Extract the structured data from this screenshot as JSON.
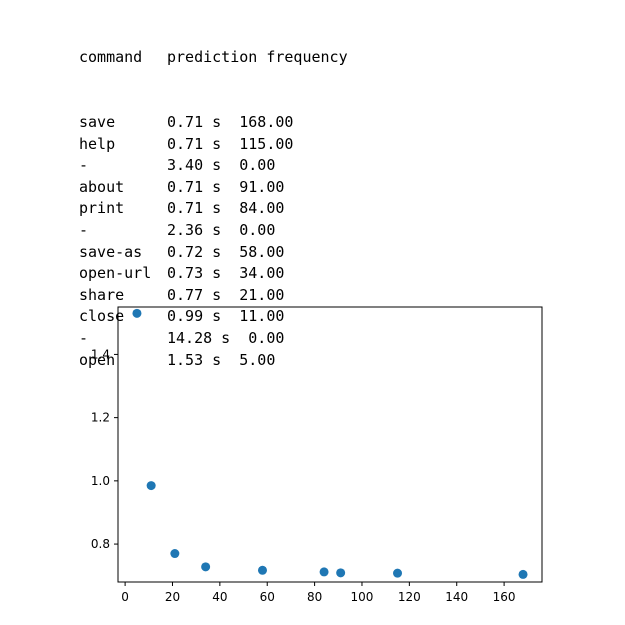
{
  "table": {
    "header": [
      "command",
      "prediction",
      "frequency"
    ],
    "rows": [
      {
        "command": "save",
        "prediction": "0.71 s",
        "frequency": "168.00"
      },
      {
        "command": "help",
        "prediction": "0.71 s",
        "frequency": "115.00"
      },
      {
        "command": "-",
        "prediction": "3.40 s",
        "frequency": "0.00"
      },
      {
        "command": "about",
        "prediction": "0.71 s",
        "frequency": "91.00"
      },
      {
        "command": "print",
        "prediction": "0.71 s",
        "frequency": "84.00"
      },
      {
        "command": "-",
        "prediction": "2.36 s",
        "frequency": "0.00"
      },
      {
        "command": "save-as",
        "prediction": "0.72 s",
        "frequency": "58.00"
      },
      {
        "command": "open-url",
        "prediction": "0.73 s",
        "frequency": "34.00"
      },
      {
        "command": "share",
        "prediction": "0.77 s",
        "frequency": "21.00"
      },
      {
        "command": "close",
        "prediction": "0.99 s",
        "frequency": "11.00"
      },
      {
        "command": "-",
        "prediction": "14.28 s",
        "frequency": "0.00"
      },
      {
        "command": "open",
        "prediction": "1.53 s",
        "frequency": "5.00"
      }
    ]
  },
  "chart_data": {
    "type": "scatter",
    "xlim": [
      -3,
      176
    ],
    "ylim": [
      0.68,
      1.55
    ],
    "xticks": [
      0,
      20,
      40,
      60,
      80,
      100,
      120,
      140,
      160
    ],
    "yticks": [
      0.8,
      1.0,
      1.2,
      1.4
    ],
    "series": [
      {
        "color": "#1f77b4",
        "points": [
          {
            "x": 5,
            "y": 1.53
          },
          {
            "x": 11,
            "y": 0.985
          },
          {
            "x": 21,
            "y": 0.77
          },
          {
            "x": 34,
            "y": 0.728
          },
          {
            "x": 58,
            "y": 0.717
          },
          {
            "x": 84,
            "y": 0.712
          },
          {
            "x": 91,
            "y": 0.709
          },
          {
            "x": 115,
            "y": 0.708
          },
          {
            "x": 168,
            "y": 0.704
          }
        ]
      }
    ],
    "grid": false
  }
}
